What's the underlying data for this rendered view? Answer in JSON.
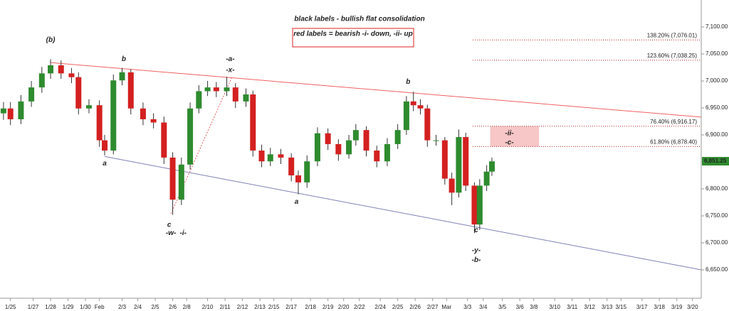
{
  "chart_data": {
    "type": "candlestick",
    "headline": "black labels - bullish flat consolidation",
    "subheadline": "red labels = bearish -i- down, -ii- up",
    "subheadline_color": "#e02020",
    "up_color": "#2e8b2e",
    "down_color": "#d42020",
    "xlim": [
      -0.6,
      39.6
    ],
    "ylim": [
      6600,
      7150
    ],
    "yticks": [
      {
        "value": 6650,
        "label": "6,650.00"
      },
      {
        "value": 6700,
        "label": "6,700.00"
      },
      {
        "value": 6750,
        "label": "6,750.00"
      },
      {
        "value": 6800,
        "label": "6,800.00"
      },
      {
        "value": 6850,
        "label": "6,850.00"
      },
      {
        "value": 6900,
        "label": "6,900.00"
      },
      {
        "value": 6950,
        "label": "6,950.00"
      },
      {
        "value": 7000,
        "label": "7,000.00"
      },
      {
        "value": 7050,
        "label": "7,050.00"
      },
      {
        "value": 7100,
        "label": "7,100.00"
      }
    ],
    "xticks": [
      {
        "value": 0,
        "label": "1/25"
      },
      {
        "value": 1.3,
        "label": "1/27"
      },
      {
        "value": 2.3,
        "label": "1/28"
      },
      {
        "value": 3.3,
        "label": "1/29"
      },
      {
        "value": 4.3,
        "label": "1/30"
      },
      {
        "value": 5.1,
        "label": "Feb"
      },
      {
        "value": 6.4,
        "label": "2/3"
      },
      {
        "value": 7.3,
        "label": "2/4"
      },
      {
        "value": 8.3,
        "label": "2/5"
      },
      {
        "value": 9.3,
        "label": "2/6"
      },
      {
        "value": 10.1,
        "label": "2/8"
      },
      {
        "value": 11.3,
        "label": "2/10"
      },
      {
        "value": 12.3,
        "label": "2/11"
      },
      {
        "value": 13.3,
        "label": "2/12"
      },
      {
        "value": 14.3,
        "label": "2/13"
      },
      {
        "value": 15.1,
        "label": "2/15"
      },
      {
        "value": 16.1,
        "label": "2/17"
      },
      {
        "value": 17.2,
        "label": "2/18"
      },
      {
        "value": 18.2,
        "label": "2/19"
      },
      {
        "value": 19.1,
        "label": "2/20"
      },
      {
        "value": 20,
        "label": "2/22"
      },
      {
        "value": 21.2,
        "label": "2/24"
      },
      {
        "value": 22.2,
        "label": "2/25"
      },
      {
        "value": 23.2,
        "label": "2/26"
      },
      {
        "value": 24.2,
        "label": "2/27"
      },
      {
        "value": 25,
        "label": "Mar"
      },
      {
        "value": 26.2,
        "label": "3/3"
      },
      {
        "value": 27.1,
        "label": "3/4"
      },
      {
        "value": 28.2,
        "label": "3/5"
      },
      {
        "value": 29.2,
        "label": "3/6"
      },
      {
        "value": 30,
        "label": "3/8"
      },
      {
        "value": 31.2,
        "label": "3/10"
      },
      {
        "value": 32.2,
        "label": "3/11"
      },
      {
        "value": 33.2,
        "label": "3/12"
      },
      {
        "value": 34.2,
        "label": "3/13"
      },
      {
        "value": 35,
        "label": "3/15"
      },
      {
        "value": 36.2,
        "label": "3/17"
      },
      {
        "value": 37.2,
        "label": "3/18"
      },
      {
        "value": 38.2,
        "label": "3/19"
      },
      {
        "value": 39.1,
        "label": "3/20"
      }
    ],
    "candles": {
      "x": [
        -0.4,
        0,
        0.6,
        1.2,
        1.8,
        2.3,
        2.9,
        3.5,
        3.9,
        4.5,
        5.1,
        5.4,
        5.9,
        6.4,
        6.9,
        7.6,
        8.2,
        8.8,
        9.3,
        9.8,
        10.3,
        10.8,
        11.3,
        11.8,
        12.4,
        12.9,
        13.5,
        13.9,
        14.4,
        14.9,
        15.5,
        16.1,
        16.5,
        17,
        17.6,
        18.2,
        18.8,
        19.4,
        19.8,
        20.4,
        21,
        21.6,
        22.2,
        22.7,
        23.1,
        23.5,
        23.9,
        24.4,
        24.9,
        25.3,
        25.7,
        26.1,
        26.6,
        26.9,
        27.3,
        27.6
      ],
      "open": [
        6940,
        6949,
        6929,
        6962,
        6988,
        7014,
        7029,
        7014,
        7007,
        6949,
        6955,
        6890,
        6871,
        7001,
        7016,
        6949,
        6929,
        6923,
        6858,
        6780,
        6845,
        6949,
        6981,
        6988,
        6981,
        6988,
        6962,
        6975,
        6871,
        6851,
        6864,
        6858,
        6825,
        6812,
        6851,
        6903,
        6883,
        6864,
        6890,
        6909,
        6871,
        6851,
        6883,
        6909,
        6962,
        6955,
        6949,
        6890,
        6890,
        6819,
        6793,
        6896,
        6806,
        6734,
        6806,
        6832
      ],
      "high": [
        6961,
        6961,
        6974,
        7000,
        7026,
        7040,
        7038,
        7024,
        7016,
        6966,
        6964,
        6900,
        7012,
        7024,
        7022,
        6960,
        6940,
        6934,
        6868,
        6858,
        6960,
        6992,
        7000,
        6998,
        7008,
        6996,
        6986,
        6982,
        6882,
        6876,
        6874,
        6866,
        6834,
        6862,
        6914,
        6912,
        6892,
        6900,
        6920,
        6916,
        6880,
        6894,
        6920,
        6972,
        6980,
        6966,
        6956,
        6900,
        6896,
        6830,
        6910,
        6904,
        6812,
        6818,
        6844,
        6858
      ],
      "low": [
        6928,
        6918,
        6920,
        6952,
        6978,
        7004,
        7004,
        6996,
        6938,
        6940,
        6878,
        6862,
        6864,
        6992,
        6938,
        6918,
        6912,
        6846,
        6752,
        6770,
        6836,
        6940,
        6972,
        6970,
        6972,
        6950,
        6952,
        6860,
        6840,
        6842,
        6846,
        6814,
        6790,
        6802,
        6842,
        6872,
        6852,
        6856,
        6880,
        6860,
        6840,
        6842,
        6874,
        6900,
        6944,
        6938,
        6878,
        6880,
        6808,
        6770,
        6784,
        6796,
        6718,
        6724,
        6796,
        6824
      ],
      "close": [
        6949,
        6929,
        6962,
        6988,
        7014,
        7029,
        7014,
        7007,
        6949,
        6955,
        6890,
        6871,
        7001,
        7016,
        6949,
        6929,
        6923,
        6858,
        6780,
        6845,
        6949,
        6981,
        6988,
        6981,
        6988,
        6962,
        6975,
        6871,
        6851,
        6864,
        6858,
        6825,
        6812,
        6851,
        6903,
        6883,
        6864,
        6890,
        6909,
        6871,
        6851,
        6883,
        6909,
        6962,
        6955,
        6949,
        6890,
        6890,
        6819,
        6793,
        6896,
        6806,
        6734,
        6806,
        6832,
        6851
      ]
    },
    "trendlines": [
      {
        "color": "#f06060",
        "dashed": false,
        "x": [
          2.3,
          39.6
        ],
        "y": [
          7034,
          6933
        ]
      },
      {
        "color": "#8080b8",
        "dashed": false,
        "x": [
          5.4,
          39.6
        ],
        "y": [
          6860,
          6650
        ]
      },
      {
        "color": "#e06060",
        "dashed": true,
        "x": [
          9.2,
          12.7
        ],
        "y": [
          6754,
          7007
        ]
      }
    ],
    "levels_color": "#b02020",
    "levels_start": 26.5,
    "levels": [
      {
        "value": 7076.01,
        "label": "138.20% (7,076.01)"
      },
      {
        "value": 7038.25,
        "label": "123.60% (7,038.25)"
      },
      {
        "value": 6916.17,
        "label": "76.40% (6,916.17)"
      },
      {
        "value": 6878.4,
        "label": "61.80% (6,878.40)"
      }
    ],
    "zone": {
      "x": [
        27.5,
        30.3
      ],
      "y": [
        6878.4,
        6916.17
      ],
      "color": "#f7c6c6"
    },
    "last": {
      "value": 6851.25,
      "label": "6,851.25",
      "color": "#2e8b2e"
    },
    "annotations": [
      {
        "text": "(b)",
        "x": 2.3,
        "y": 7076,
        "color": "#e02020"
      },
      {
        "text": "b",
        "x": 6.5,
        "y": 7040,
        "color": "#111111"
      },
      {
        "text": "a",
        "x": 5.4,
        "y": 6847,
        "color": "#111111"
      },
      {
        "text": "-a-",
        "x": 12.6,
        "y": 7040,
        "color": "#e02020"
      },
      {
        "text": "-x-",
        "x": 12.6,
        "y": 7020,
        "color": "#111111"
      },
      {
        "text": "c",
        "x": 9.1,
        "y": 6733,
        "color": "#111111"
      },
      {
        "text": "-w-",
        "x": 9.2,
        "y": 6718,
        "color": "#111111"
      },
      {
        "text": "-i-",
        "x": 9.9,
        "y": 6718,
        "color": "#e02020"
      },
      {
        "text": "a",
        "x": 16.4,
        "y": 6776,
        "color": "#111111"
      },
      {
        "text": "b",
        "x": 22.8,
        "y": 6998,
        "color": "#111111"
      },
      {
        "text": "c",
        "x": 26.7,
        "y": 6723,
        "color": "#111111"
      },
      {
        "text": "-y-",
        "x": 26.7,
        "y": 6686,
        "color": "#111111"
      },
      {
        "text": "-b-",
        "x": 26.7,
        "y": 6668,
        "color": "#e02020"
      },
      {
        "text": "-ii-",
        "x": 28.6,
        "y": 6903,
        "color": "#e02020"
      },
      {
        "text": "-c-",
        "x": 28.6,
        "y": 6886,
        "color": "#e02020"
      }
    ]
  }
}
